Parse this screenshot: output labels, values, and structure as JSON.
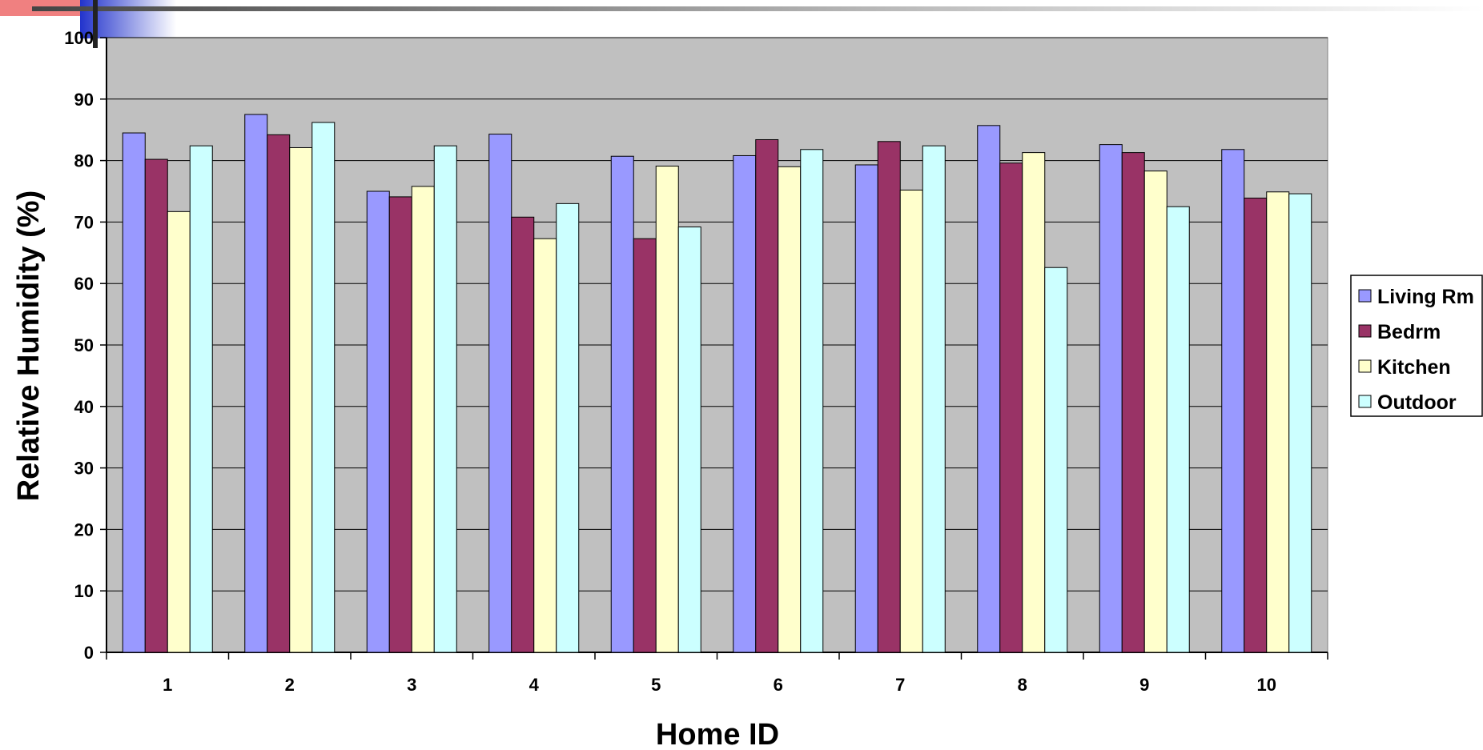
{
  "chart_data": {
    "type": "bar",
    "categories": [
      "1",
      "2",
      "3",
      "4",
      "5",
      "6",
      "7",
      "8",
      "9",
      "10"
    ],
    "series": [
      {
        "name": "Living Rm",
        "color": "#9999ff",
        "values": [
          84.5,
          87.5,
          75.0,
          84.3,
          80.7,
          80.8,
          79.3,
          85.7,
          82.6,
          81.8
        ]
      },
      {
        "name": "Bedrm",
        "color": "#993366",
        "values": [
          80.2,
          84.2,
          74.1,
          70.8,
          67.3,
          83.4,
          83.1,
          79.6,
          81.3,
          73.9
        ]
      },
      {
        "name": "Kitchen",
        "color": "#ffffcc",
        "values": [
          71.7,
          82.1,
          75.8,
          67.3,
          79.1,
          79.0,
          75.2,
          81.3,
          78.3,
          74.9
        ]
      },
      {
        "name": "Outdoor",
        "color": "#ccffff",
        "values": [
          82.4,
          86.2,
          82.4,
          73.0,
          69.2,
          81.8,
          82.4,
          62.6,
          72.5,
          74.6
        ]
      }
    ],
    "xlabel": "Home ID",
    "ylabel": "Relative Humidity (%)",
    "ylim": [
      0,
      100
    ],
    "yticks": [
      0,
      10,
      20,
      30,
      40,
      50,
      60,
      70,
      80,
      90,
      100
    ],
    "grid": true,
    "legend_position": "right",
    "plot_background": "#c0c0c0"
  }
}
